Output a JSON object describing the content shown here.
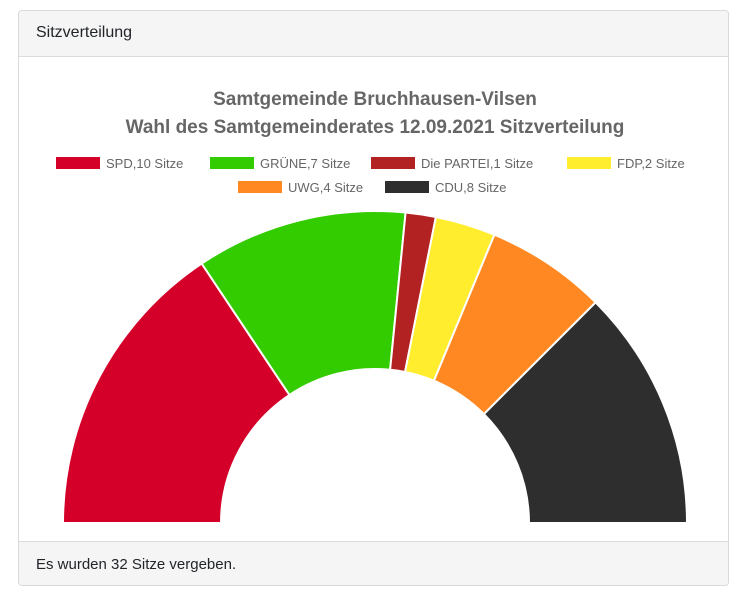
{
  "card": {
    "header": "Sitzverteilung",
    "footer": "Es wurden 32 Sitze vergeben."
  },
  "chart_data": {
    "type": "pie",
    "subtype": "semicircle-donut",
    "title": "Samtgemeinde Bruchhausen-Vilsen",
    "subtitle": "Wahl des Samtgemeinderates 12.09.2021 Sitzverteilung",
    "legend_position": "top",
    "unit": "Sitze",
    "total": 32,
    "series": [
      {
        "name": "SPD",
        "value": 10,
        "legend": "SPD,10 Sitze",
        "color": "#d4002a"
      },
      {
        "name": "GRÜNE",
        "value": 7,
        "legend": "GRÜNE,7 Sitze",
        "color": "#33cc00"
      },
      {
        "name": "Die PARTEI",
        "value": 1,
        "legend": "Die PARTEI,1 Sitze",
        "color": "#b22222"
      },
      {
        "name": "FDP",
        "value": 2,
        "legend": "FDP,2 Sitze",
        "color": "#ffed2e"
      },
      {
        "name": "UWG",
        "value": 4,
        "legend": "UWG,4 Sitze",
        "color": "#ff8822"
      },
      {
        "name": "CDU",
        "value": 8,
        "legend": "CDU,8 Sitze",
        "color": "#2e2e2e"
      }
    ]
  }
}
